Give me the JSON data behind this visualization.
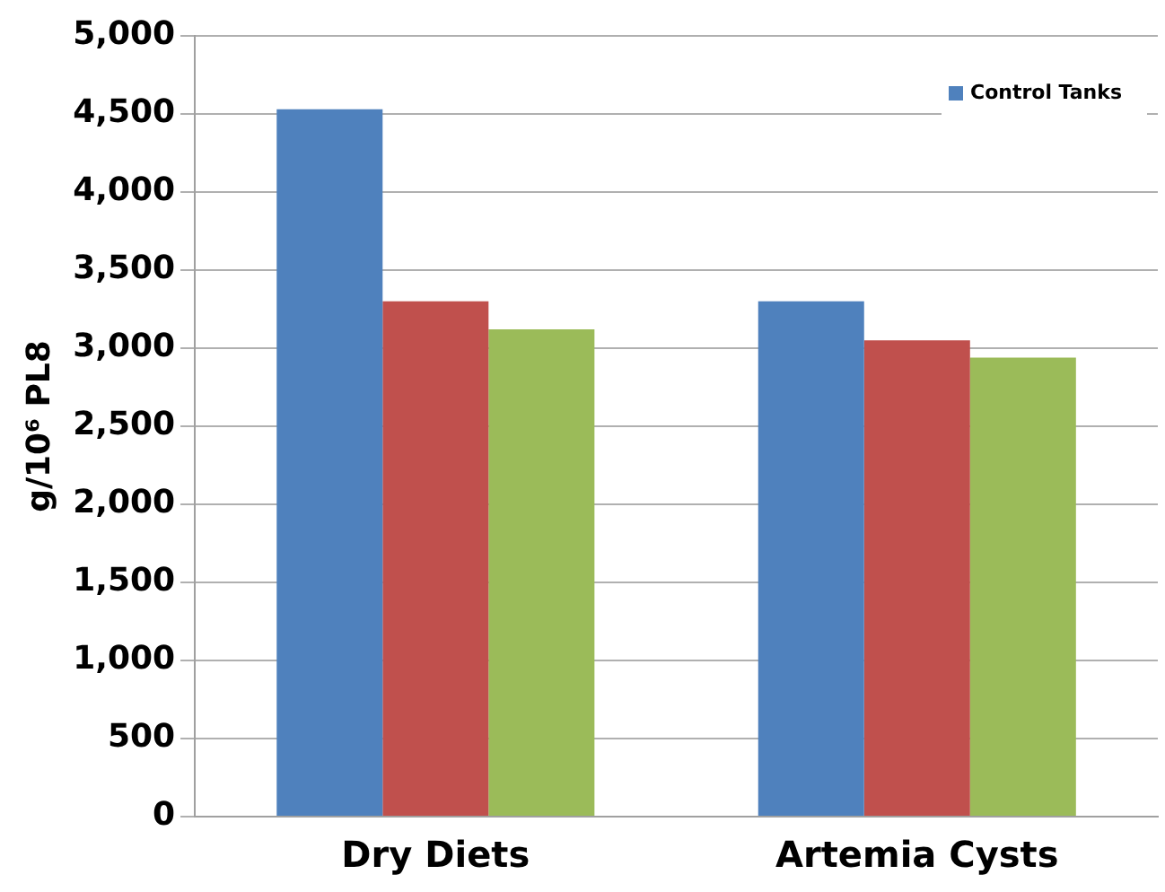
{
  "chart_data": {
    "type": "bar",
    "ylabel": "g/10⁶ PL8",
    "categories": [
      "Dry Diets",
      "Artemia Cysts"
    ],
    "series": [
      {
        "name": "Control Tanks",
        "color": "#4f81bd",
        "values": [
          4530,
          3300
        ]
      },
      {
        "color": "#c0504d",
        "values": [
          3300,
          3050
        ]
      },
      {
        "color": "#9bbb59",
        "values": [
          3120,
          2940
        ]
      }
    ],
    "ylim": [
      0,
      5000
    ],
    "yticks": [
      {
        "value": 0,
        "label": "0"
      },
      {
        "value": 500,
        "label": "500"
      },
      {
        "value": 1000,
        "label": "1,000"
      },
      {
        "value": 1500,
        "label": "1,500"
      },
      {
        "value": 2000,
        "label": "2,000"
      },
      {
        "value": 2500,
        "label": "2,500"
      },
      {
        "value": 3000,
        "label": "3,000"
      },
      {
        "value": 3500,
        "label": "3,500"
      },
      {
        "value": 4000,
        "label": "4,000"
      },
      {
        "value": 4500,
        "label": "4,500"
      },
      {
        "value": 5000,
        "label": "5,000"
      }
    ],
    "grid": "y",
    "legend": "top right"
  }
}
